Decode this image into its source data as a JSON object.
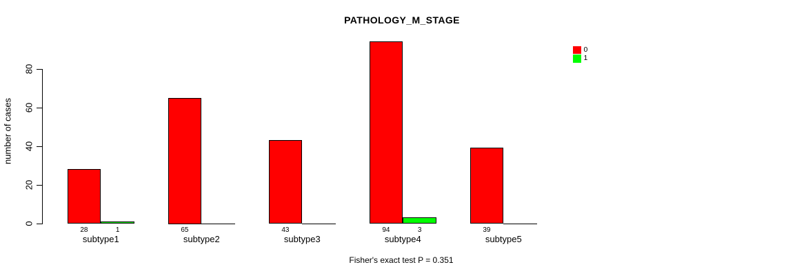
{
  "chart_data": {
    "type": "bar",
    "title": "PATHOLOGY_M_STAGE",
    "ylabel": "number of cases",
    "xlabel": "",
    "categories": [
      "subtype1",
      "subtype2",
      "subtype3",
      "subtype4",
      "subtype5"
    ],
    "series": [
      {
        "name": "0",
        "color": "#ff0000",
        "values": [
          28,
          65,
          43,
          94,
          39
        ]
      },
      {
        "name": "1",
        "color": "#00ff00",
        "values": [
          1,
          0,
          0,
          3,
          0
        ]
      }
    ],
    "yticks": [
      0,
      20,
      40,
      60,
      80
    ],
    "ylim": [
      0,
      95
    ],
    "grid": false,
    "legend_position": "top-right",
    "annotation": "Fisher's exact test P = 0.351"
  },
  "colors": {
    "background": "#ffffff",
    "bar_border": "#000000",
    "text": "#000000",
    "series_0": "#ff0000",
    "series_1": "#00ff00"
  }
}
